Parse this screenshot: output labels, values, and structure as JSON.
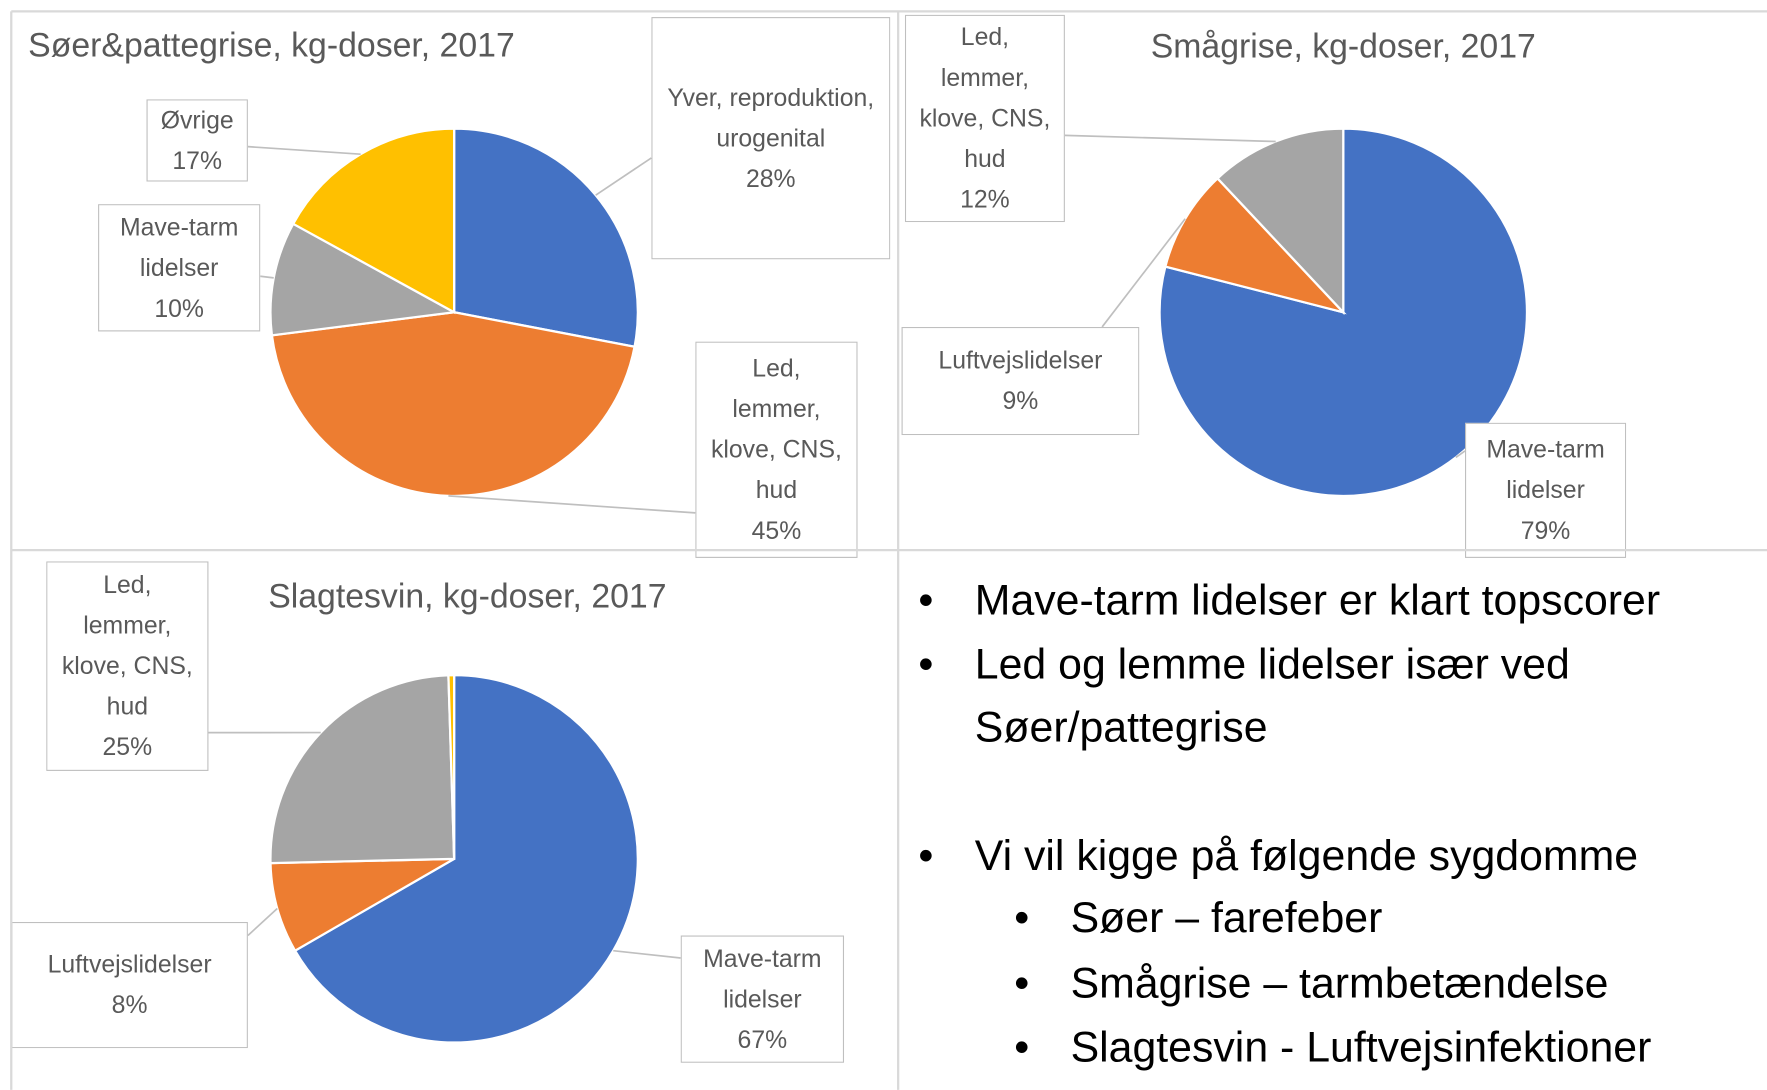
{
  "chart_data": [
    {
      "type": "pie",
      "title": "Søer&pattegrise, kg-doser, 2017",
      "categories": [
        "Yver, reproduktion, urogenital",
        "Led, lemmer, klove, CNS, hud",
        "Mave-tarm lidelser",
        "Øvrige"
      ],
      "values": [
        28,
        45,
        10,
        17
      ],
      "value_labels": [
        "28%",
        "45%",
        "10%",
        "17%"
      ],
      "colors": [
        "#4472c4",
        "#ed7d31",
        "#a5a5a5",
        "#ffc000"
      ]
    },
    {
      "type": "pie",
      "title": "Smågrise, kg-doser, 2017",
      "categories": [
        "Mave-tarm lidelser",
        "Luftvejslidelser",
        "Led, lemmer, klove, CNS, hud"
      ],
      "values": [
        79,
        9,
        12
      ],
      "value_labels": [
        "79%",
        "9%",
        "12%"
      ],
      "colors": [
        "#4472c4",
        "#ed7d31",
        "#a5a5a5"
      ]
    },
    {
      "type": "pie",
      "title": "Slagtesvin, kg-doser, 2017",
      "categories": [
        "Mave-tarm lidelser",
        "Luftvejslidelser",
        "Led, lemmer, klove, CNS, hud",
        null
      ],
      "values": [
        67,
        8,
        25,
        0.5
      ],
      "value_labels": [
        "67%",
        "8%",
        "25%",
        null
      ],
      "colors": [
        "#4472c4",
        "#ed7d31",
        "#a5a5a5",
        "#ffc000"
      ]
    }
  ],
  "bullets": [
    "Mave-tarm lidelser er klart topscorer",
    "Led og lemme lidelser især ved Søer/pattegrise",
    "Vi vil kigge på følgende sygdomme",
    "Søer – farefeber",
    "Smågrise – tarmbetændelse",
    "Slagtesvin - Luftvejsinfektioner"
  ]
}
